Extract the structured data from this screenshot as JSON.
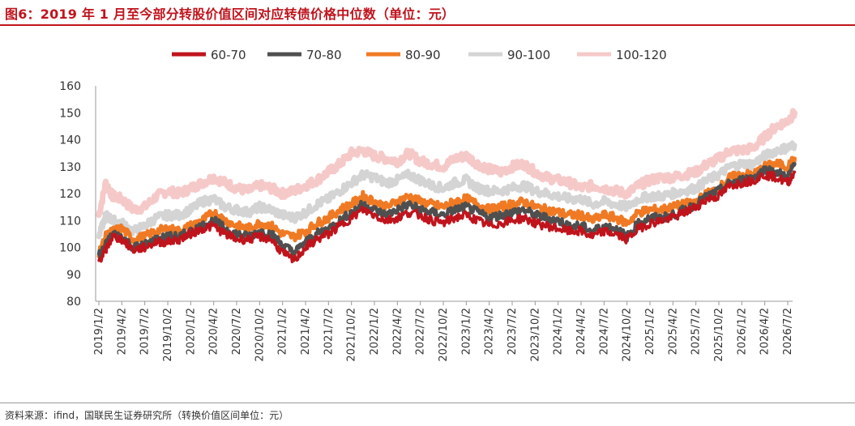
{
  "title": "图6：2019 年 1 月至今部分转股价值区间对应转债价格中位数（单位：元）",
  "source": "资料来源：ifind，国联民生证券研究所（转换价值区间单位：元）",
  "colors": {
    "title": "#c0141d",
    "series_60_70": "#c0141d",
    "series_70_80": "#4f4f4f",
    "series_80_90": "#f07a24",
    "series_90_100": "#d4d4d4",
    "series_100_120": "#f6c9c9"
  },
  "chart_data": {
    "type": "line",
    "ylim": [
      80,
      160
    ],
    "yticks": [
      80,
      90,
      100,
      110,
      120,
      130,
      140,
      150,
      160
    ],
    "xticks": [
      "2019/1/2",
      "2019/4/2",
      "2019/7/2",
      "2019/10/2",
      "2020/1/2",
      "2020/4/2",
      "2020/7/2",
      "2020/10/2",
      "2021/1/2",
      "2021/4/2",
      "2021/7/2",
      "2021/10/2",
      "2022/1/2",
      "2022/4/2",
      "2022/7/2",
      "2022/10/2",
      "2023/1/2",
      "2023/4/2",
      "2023/7/2",
      "2023/10/2",
      "2024/1/2",
      "2024/4/2",
      "2024/7/2",
      "2024/10/2",
      "2025/1/2",
      "2025/4/2",
      "2025/7/2",
      "2025/10/2",
      "2026/1/2",
      "2026/4/2",
      "2026/7/2"
    ],
    "x_unit": "tick index (quarters from 2019/1/2)",
    "legend_position": "top",
    "series": [
      {
        "name": "100-120",
        "color": "#f6c9c9",
        "x": [
          0,
          0.3,
          0.6,
          1,
          1.5,
          2,
          2.5,
          3,
          3.5,
          4,
          4.5,
          5,
          5.5,
          6,
          6.5,
          7,
          7.5,
          8,
          8.5,
          9,
          9.5,
          10,
          10.5,
          11,
          11.5,
          12,
          12.5,
          13,
          13.5,
          14,
          14.5,
          15,
          15.5,
          16,
          16.5,
          17,
          17.5,
          18,
          18.5,
          19,
          19.5,
          20,
          20.5,
          21,
          21.5,
          22,
          22.5,
          23,
          23.5,
          24,
          24.5,
          25,
          25.5,
          26,
          26.5,
          27,
          27.5,
          28,
          28.5,
          29,
          29.5,
          30,
          30.3
        ],
        "y": [
          112,
          124,
          119,
          118,
          114,
          115,
          119,
          121,
          120,
          122,
          124,
          126,
          124,
          122,
          121,
          123,
          122,
          120,
          121,
          123,
          125,
          128,
          131,
          135,
          136,
          134,
          133,
          132,
          135,
          132,
          131,
          130,
          133,
          134,
          131,
          129,
          128,
          130,
          131,
          128,
          126,
          125,
          124,
          122,
          123,
          122,
          121,
          120,
          123,
          125,
          126,
          126,
          127,
          128,
          131,
          133,
          136,
          136,
          137,
          141,
          145,
          147,
          150
        ]
      },
      {
        "name": "90-100",
        "color": "#d4d4d4",
        "x": [
          0,
          0.3,
          0.6,
          1,
          1.5,
          2,
          2.5,
          3,
          3.5,
          4,
          4.5,
          5,
          5.5,
          6,
          6.5,
          7,
          7.5,
          8,
          8.5,
          9,
          9.5,
          10,
          10.5,
          11,
          11.5,
          12,
          12.5,
          13,
          13.5,
          14,
          14.5,
          15,
          15.5,
          16,
          16.5,
          17,
          17.5,
          18,
          18.5,
          19,
          19.5,
          20,
          20.5,
          21,
          21.5,
          22,
          22.5,
          23,
          23.5,
          24,
          24.5,
          25,
          25.5,
          26,
          26.5,
          27,
          27.5,
          28,
          28.5,
          29,
          29.5,
          30,
          30.3
        ],
        "y": [
          104,
          112,
          110,
          109,
          106,
          108,
          111,
          112,
          112,
          114,
          117,
          118,
          115,
          114,
          113,
          115,
          114,
          112,
          111,
          113,
          116,
          118,
          121,
          124,
          127,
          126,
          124,
          125,
          127,
          125,
          123,
          122,
          124,
          125,
          122,
          121,
          121,
          122,
          123,
          121,
          120,
          119,
          118,
          118,
          116,
          117,
          116,
          115,
          118,
          119,
          119,
          120,
          121,
          122,
          125,
          127,
          130,
          131,
          131,
          134,
          136,
          137,
          138
        ]
      },
      {
        "name": "80-90",
        "color": "#f07a24",
        "x": [
          0,
          0.3,
          0.6,
          1,
          1.5,
          2,
          2.5,
          3,
          3.5,
          4,
          4.5,
          5,
          5.5,
          6,
          6.5,
          7,
          7.5,
          8,
          8.5,
          9,
          9.5,
          10,
          10.5,
          11,
          11.5,
          12,
          12.5,
          13,
          13.5,
          14,
          14.5,
          15,
          15.5,
          16,
          16.5,
          17,
          17.5,
          18,
          18.5,
          19,
          19.5,
          20,
          20.5,
          21,
          21.5,
          22,
          22.5,
          23,
          23.5,
          24,
          24.5,
          25,
          25.5,
          26,
          26.5,
          27,
          27.5,
          28,
          28.5,
          29,
          29.5,
          30,
          30.3
        ],
        "y": [
          98,
          104,
          106,
          107,
          103,
          104,
          106,
          107,
          106,
          108,
          110,
          113,
          110,
          108,
          107,
          109,
          108,
          105,
          104,
          106,
          109,
          111,
          114,
          116,
          119,
          117,
          115,
          117,
          119,
          117,
          116,
          115,
          117,
          118,
          116,
          114,
          115,
          116,
          117,
          115,
          114,
          113,
          112,
          112,
          110,
          112,
          111,
          109,
          113,
          114,
          114,
          115,
          116,
          117,
          120,
          122,
          126,
          127,
          127,
          130,
          131,
          130,
          133
        ]
      },
      {
        "name": "70-80",
        "color": "#4f4f4f",
        "x": [
          0,
          0.3,
          0.6,
          1,
          1.5,
          2,
          2.5,
          3,
          3.5,
          4,
          4.5,
          5,
          5.5,
          6,
          6.5,
          7,
          7.5,
          8,
          8.5,
          9,
          9.5,
          10,
          10.5,
          11,
          11.5,
          12,
          12.5,
          13,
          13.5,
          14,
          14.5,
          15,
          15.5,
          16,
          16.5,
          17,
          17.5,
          18,
          18.5,
          19,
          19.5,
          20,
          20.5,
          21,
          21.5,
          22,
          22.5,
          23,
          23.5,
          24,
          24.5,
          25,
          25.5,
          26,
          26.5,
          27,
          27.5,
          28,
          28.5,
          29,
          29.5,
          30,
          30.3
        ],
        "y": [
          97,
          101,
          105,
          104,
          100,
          101,
          103,
          104,
          104,
          106,
          108,
          110,
          107,
          105,
          104,
          106,
          105,
          101,
          98,
          102,
          105,
          107,
          110,
          113,
          116,
          114,
          112,
          114,
          116,
          114,
          113,
          112,
          114,
          115,
          113,
          111,
          112,
          113,
          114,
          112,
          111,
          110,
          108,
          108,
          106,
          108,
          107,
          104,
          109,
          111,
          111,
          112,
          114,
          116,
          119,
          121,
          124,
          125,
          126,
          129,
          128,
          126,
          131
        ]
      },
      {
        "name": "60-70",
        "color": "#c0141d",
        "x": [
          0,
          0.3,
          0.6,
          1,
          1.5,
          2,
          2.5,
          3,
          3.5,
          4,
          4.5,
          5,
          5.5,
          6,
          6.5,
          7,
          7.5,
          8,
          8.5,
          9,
          9.5,
          10,
          10.5,
          11,
          11.5,
          12,
          12.5,
          13,
          13.5,
          14,
          14.5,
          15,
          15.5,
          16,
          16.5,
          17,
          17.5,
          18,
          18.5,
          19,
          19.5,
          20,
          20.5,
          21,
          21.5,
          22,
          22.5,
          23,
          23.5,
          24,
          24.5,
          25,
          25.5,
          26,
          26.5,
          27,
          27.5,
          28,
          28.5,
          29,
          29.5,
          30,
          30.3
        ],
        "y": [
          95,
          99,
          104,
          103,
          99,
          100,
          102,
          102,
          103,
          105,
          107,
          108,
          105,
          103,
          103,
          104,
          103,
          98,
          95,
          100,
          103,
          105,
          108,
          111,
          114,
          112,
          110,
          111,
          113,
          112,
          110,
          109,
          111,
          112,
          110,
          108,
          109,
          110,
          111,
          109,
          108,
          107,
          106,
          106,
          104,
          106,
          105,
          103,
          107,
          109,
          110,
          111,
          113,
          115,
          118,
          119,
          123,
          124,
          125,
          127,
          126,
          124,
          128
        ]
      }
    ],
    "legend_order": [
      "60-70",
      "70-80",
      "80-90",
      "90-100",
      "100-120"
    ]
  }
}
